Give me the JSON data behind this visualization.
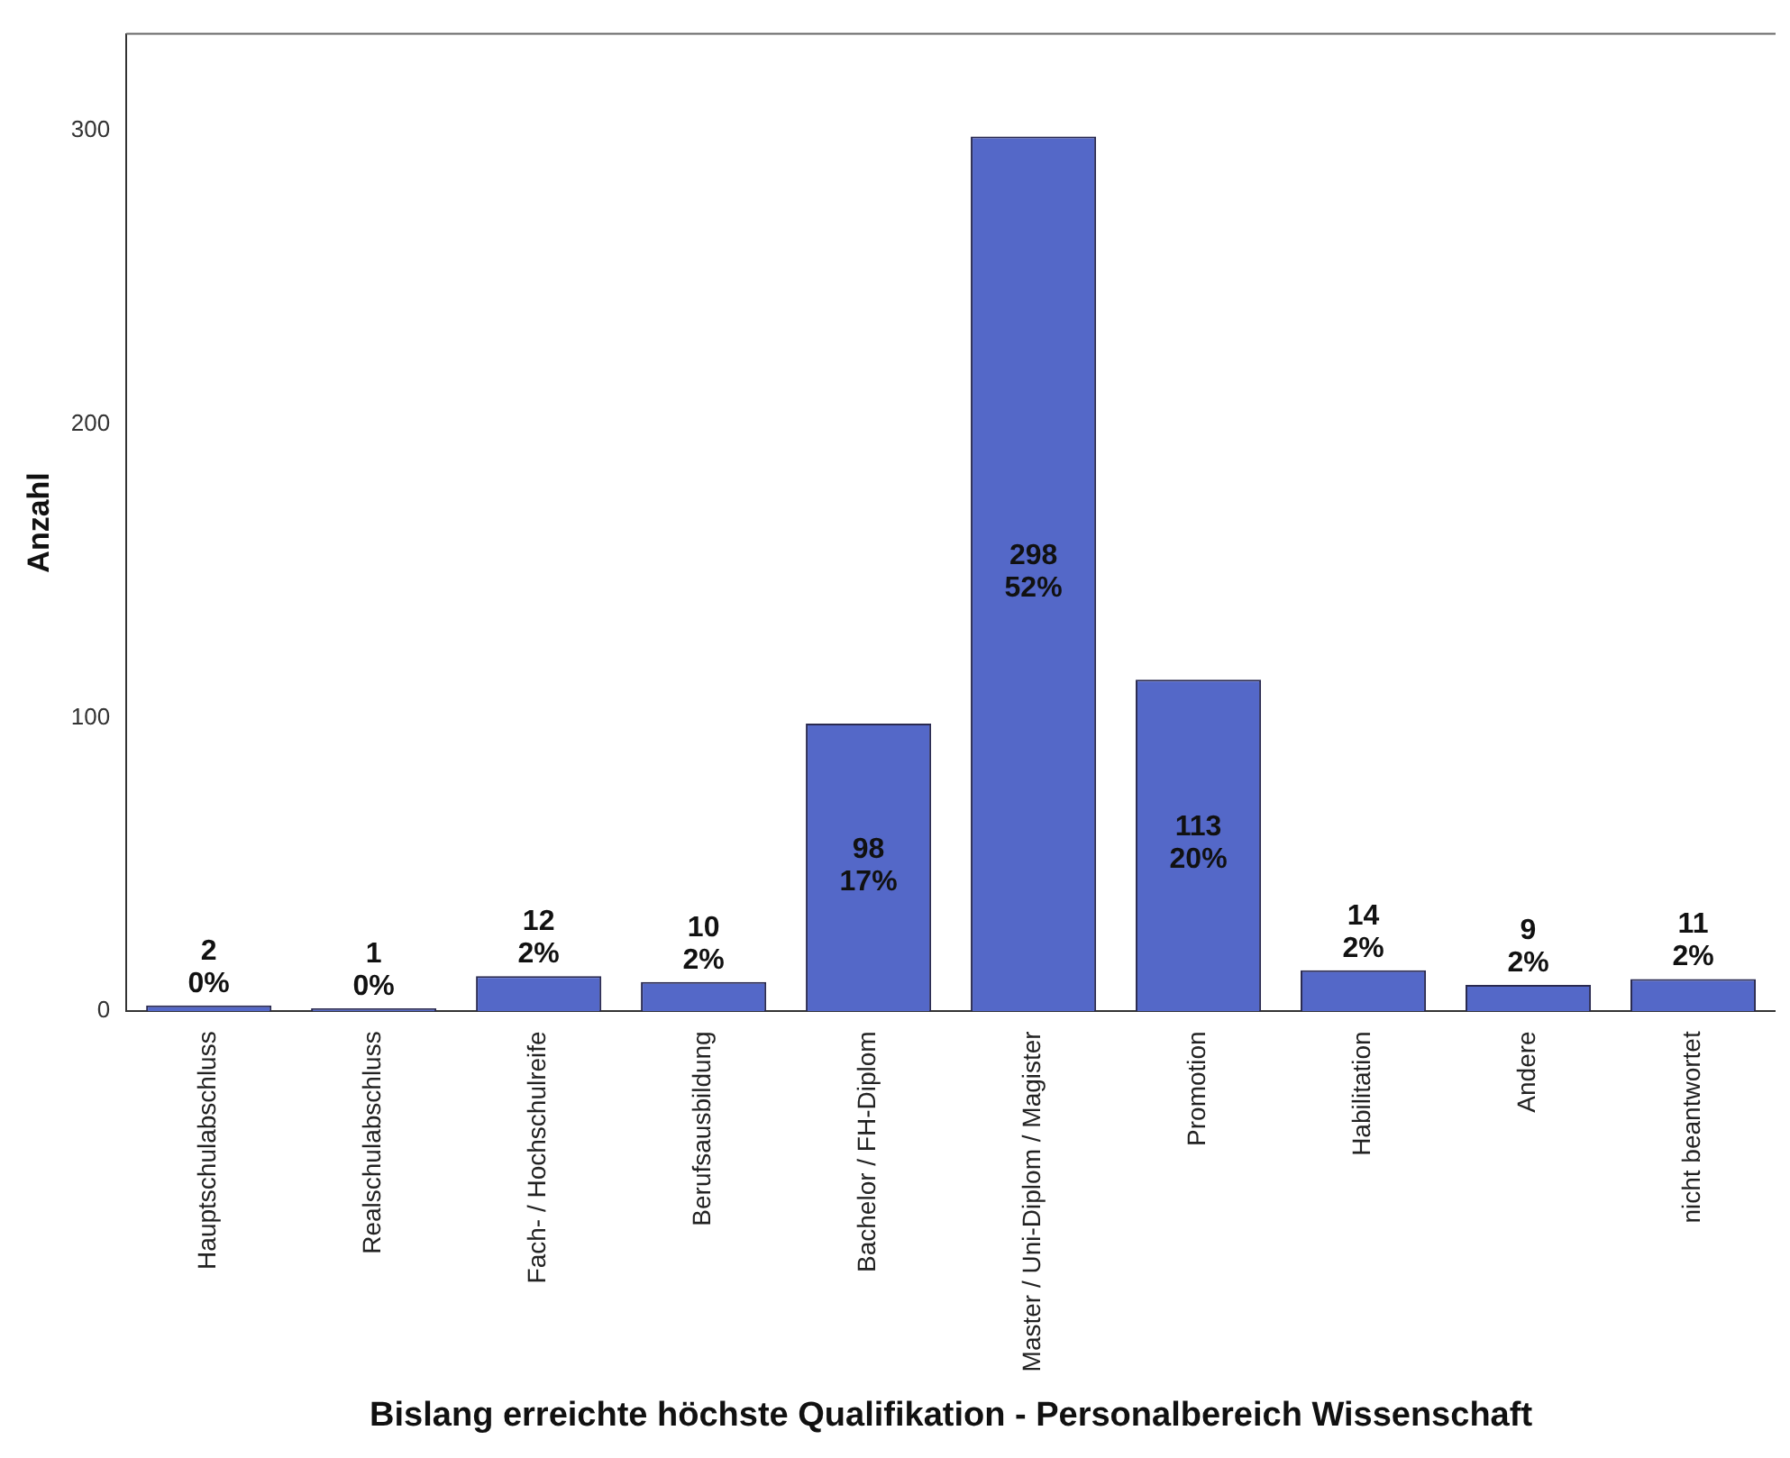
{
  "chart_data": {
    "type": "bar",
    "xlabel": "Bislang erreichte höchste Qualifikation - Personalbereich Wissenschaft",
    "ylabel": "Anzahl",
    "categories": [
      "Hauptschulabschluss",
      "Realschulabschluss",
      "Fach- / Hochschulreife",
      "Berufsausbildung",
      "Bachelor / FH-Diplom",
      "Master / Uni-Diplom / Magister",
      "Promotion",
      "Habilitation",
      "Andere",
      "nicht beantwortet"
    ],
    "values": [
      2,
      1,
      12,
      10,
      98,
      298,
      113,
      14,
      9,
      11
    ],
    "value_labels": [
      "2\n0%",
      "1\n0%",
      "12\n2%",
      "10\n2%",
      "98\n17%",
      "298\n52%",
      "113\n20%",
      "14\n2%",
      "9\n2%",
      "11\n2%"
    ],
    "color": "#5468c8",
    "ylim": [
      0,
      333
    ],
    "yticks": [
      0,
      100,
      200,
      300
    ],
    "grid": false,
    "legend": false
  }
}
